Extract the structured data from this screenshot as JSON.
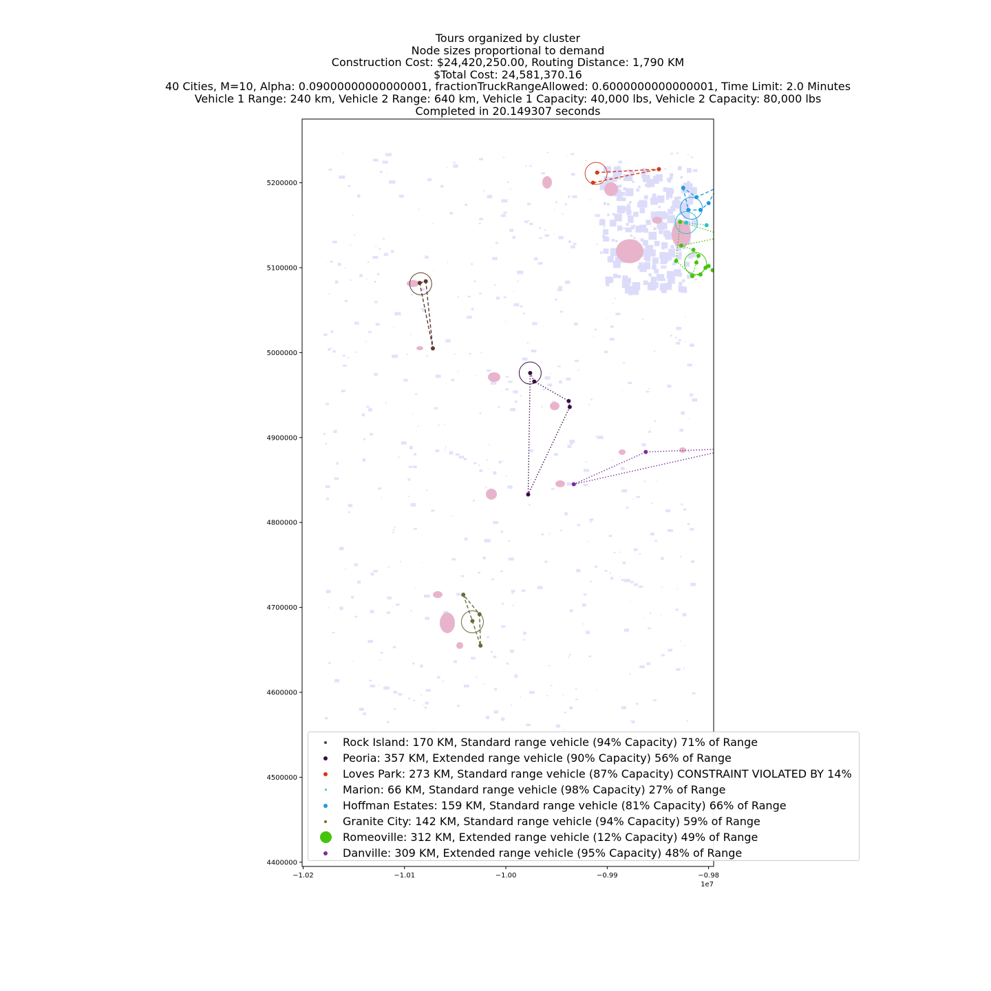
{
  "title_lines": [
    "Tours organized by cluster",
    "Node sizes proportional to demand",
    "Construction Cost: $24,420,250.00, Routing Distance: 1,790 KM",
    "$Total Cost: 24,581,370.16",
    "40 Cities, M=10, Alpha: 0.09000000000000001, fractionTruckRangeAllowed: 0.6000000000000001, Time Limit: 2.0 Minutes",
    "Vehicle 1 Range: 240 km, Vehicle 2 Range: 640 km, Vehicle 1 Capacity: 40,000 lbs, Vehicle 2 Capacity: 80,000 lbs",
    "Completed in 20.149307 seconds"
  ],
  "axes": {
    "x_ticks": [
      {
        "value": -1.02,
        "label": "−1.02"
      },
      {
        "value": -1.01,
        "label": "−1.01"
      },
      {
        "value": -1.0,
        "label": "−1.00"
      },
      {
        "value": -0.99,
        "label": "−0.99"
      },
      {
        "value": -0.98,
        "label": "−0.98"
      }
    ],
    "x_offset_label": "1e7",
    "y_ticks": [
      {
        "value": 4400000,
        "label": "4400000"
      },
      {
        "value": 4500000,
        "label": "4500000"
      },
      {
        "value": 4600000,
        "label": "4600000"
      },
      {
        "value": 4700000,
        "label": "4700000"
      },
      {
        "value": 4800000,
        "label": "4800000"
      },
      {
        "value": 4900000,
        "label": "4900000"
      },
      {
        "value": 5000000,
        "label": "5000000"
      },
      {
        "value": 5100000,
        "label": "5100000"
      },
      {
        "value": 5200000,
        "label": "5200000"
      }
    ],
    "xlim": [
      -1.0201,
      -0.9795
    ],
    "ylim": [
      4395000,
      5275000
    ]
  },
  "legend": [
    {
      "label": "Rock Island: 170 KM, Standard range vehicle (94% Capacity) 71% of Range",
      "color": "#5a3a2e",
      "size": 4
    },
    {
      "label": "Peoria: 357 KM, Extended range vehicle (90% Capacity) 56% of Range",
      "color": "#3b0a45",
      "size": 6
    },
    {
      "label": "Loves Park: 273 KM, Standard range vehicle (87% Capacity) CONSTRAINT VIOLATED BY 14%",
      "color": "#d43a17",
      "size": 6
    },
    {
      "label": "Marion: 66 KM, Standard range vehicle (98% Capacity) 27% of Range",
      "color": "#2ec4c4",
      "size": 3
    },
    {
      "label": "Hoffman Estates: 159 KM, Standard range vehicle (81% Capacity) 66% of Range",
      "color": "#1f9ae0",
      "size": 6
    },
    {
      "label": "Granite City: 142 KM, Standard range vehicle (94% Capacity) 59% of Range",
      "color": "#6b6b3a",
      "size": 4
    },
    {
      "label": "Romeoville: 312 KM, Extended range vehicle (12% Capacity) 49% of Range",
      "color": "#44c40a",
      "size": 17
    },
    {
      "label": "Danville: 309 KM, Extended range vehicle (95% Capacity) 48% of Range",
      "color": "#7b2d9c",
      "size": 6
    }
  ],
  "chart_data": {
    "type": "scatter",
    "series": [
      {
        "name": "Rock Island",
        "color": "#5a3a2e",
        "line": "dashed",
        "depot": [
          -1.0084,
          5081000
        ],
        "nodes": [
          [
            -1.0085,
            5082000
          ],
          [
            -1.0079,
            5084000
          ],
          [
            -1.0072,
            5005000
          ]
        ],
        "route": [
          0,
          1,
          2,
          0
        ]
      },
      {
        "name": "Peoria",
        "color": "#3b0a45",
        "line": "dotted",
        "depot": [
          -0.9976,
          4976000
        ],
        "nodes": [
          [
            -0.9976,
            4976000
          ],
          [
            -0.9972,
            4966000
          ],
          [
            -0.9938,
            4943000
          ],
          [
            -0.9937,
            4936000
          ],
          [
            -0.9978,
            4833000
          ]
        ],
        "route": [
          0,
          1,
          2,
          3,
          4,
          0
        ]
      },
      {
        "name": "Loves Park",
        "color": "#d43a17",
        "line": "dashed",
        "depot": [
          -0.9911,
          5211000
        ],
        "nodes": [
          [
            -0.9914,
            5200000
          ],
          [
            -0.991,
            5212000
          ],
          [
            -0.9849,
            5216000
          ]
        ],
        "route": [
          0,
          2,
          1
        ]
      },
      {
        "name": "Marion",
        "color": "#2ec4c4",
        "line": "dotted",
        "depot": [
          -0.9822,
          5153000
        ],
        "nodes": [
          [
            -0.9822,
            5153000
          ],
          [
            -0.9802,
            5150000
          ]
        ],
        "route": [
          0,
          1
        ]
      },
      {
        "name": "Hoffman Estates",
        "color": "#1f9ae0",
        "line": "dashed",
        "depot": [
          -0.9817,
          5170000
        ],
        "nodes": [
          [
            -0.9825,
            5194000
          ],
          [
            -0.982,
            5168000
          ],
          [
            -0.9812,
            5183000
          ],
          [
            -0.9808,
            5168000
          ],
          [
            -0.98,
            5176000
          ],
          [
            -0.9792,
            5194000
          ]
        ],
        "route": [
          0,
          1,
          3,
          4,
          5,
          2,
          0
        ]
      },
      {
        "name": "Granite City",
        "color": "#6b6b3a",
        "line": "dashed",
        "depot": [
          -1.0033,
          4683000
        ],
        "nodes": [
          [
            -1.0042,
            4715000
          ],
          [
            -1.0033,
            4684000
          ],
          [
            -1.0026,
            4692000
          ],
          [
            -1.0025,
            4655000
          ]
        ],
        "route": [
          0,
          1,
          3,
          2,
          0
        ]
      },
      {
        "name": "Romeoville",
        "color": "#44c40a",
        "line": "dotted",
        "depot": [
          -0.9813,
          5105000
        ],
        "nodes": [
          [
            -0.9782,
            5137000
          ],
          [
            -0.9827,
            5126000
          ],
          [
            -0.9815,
            5121000
          ],
          [
            -0.981,
            5114000
          ],
          [
            -0.9812,
            5106000
          ],
          [
            -0.9816,
            5090000
          ],
          [
            -0.9808,
            5092000
          ],
          [
            -0.9803,
            5100000
          ],
          [
            -0.98,
            5102000
          ],
          [
            -0.9796,
            5097000
          ],
          [
            -0.9832,
            5108000
          ],
          [
            -0.9828,
            5154000
          ]
        ],
        "route": [
          0,
          1,
          2,
          3,
          4,
          5,
          6,
          7,
          8,
          9,
          0,
          11,
          10,
          5
        ]
      },
      {
        "name": "Danville",
        "color": "#7b2d9c",
        "line": "dotted",
        "depot": [
          -0.9776,
          4887000
        ],
        "nodes": [
          [
            -0.9776,
            4887000
          ],
          [
            -0.9862,
            4883000
          ],
          [
            -0.9933,
            4845000
          ]
        ],
        "route": [
          0,
          1,
          2,
          0
        ]
      }
    ]
  }
}
